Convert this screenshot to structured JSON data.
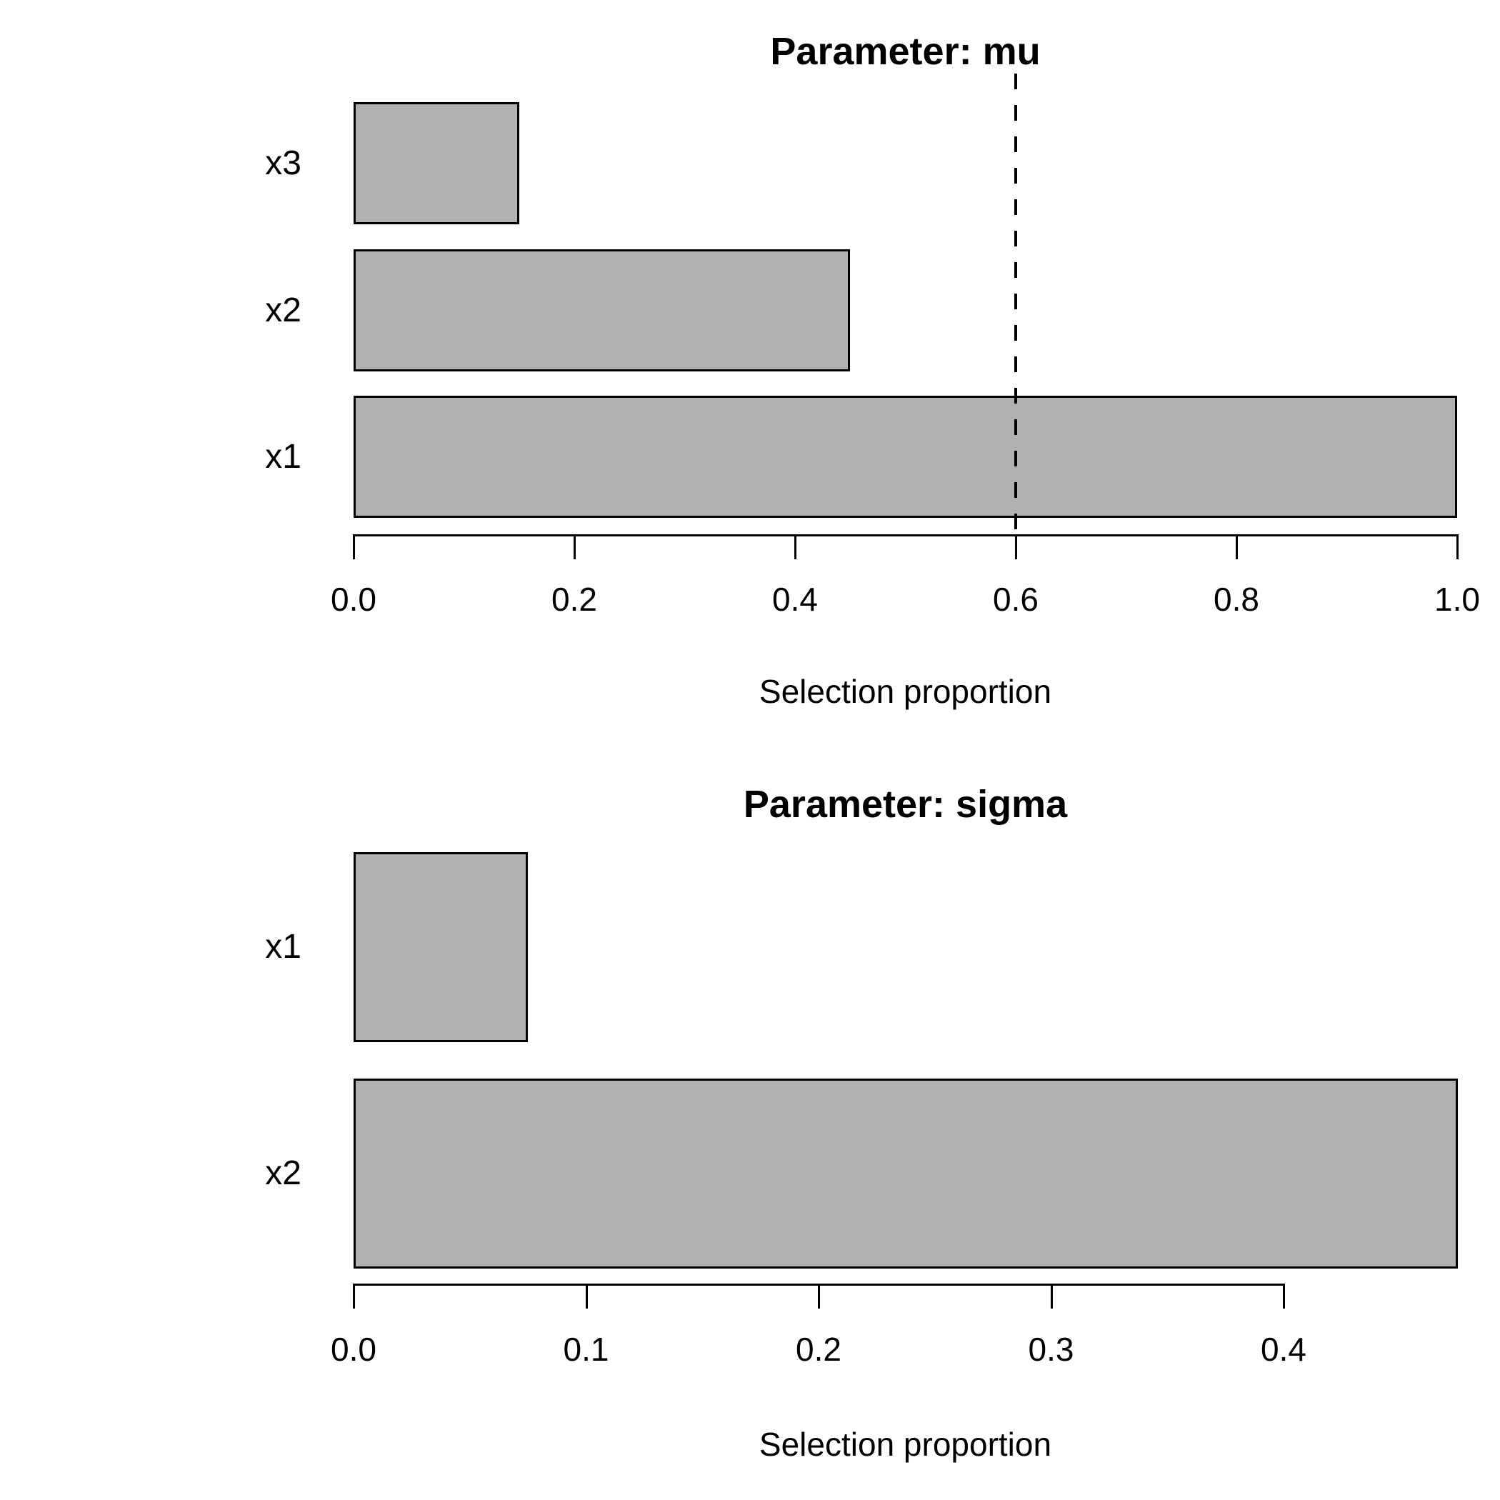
{
  "figure": {
    "background": "#ffffff",
    "bar_fill": "#b1b1b1",
    "bar_border": "#000000"
  },
  "chart_data": [
    {
      "type": "bar",
      "orientation": "horizontal",
      "title": "Parameter: mu",
      "xlabel": "Selection proportion",
      "ylabel": "",
      "categories": [
        "x3",
        "x2",
        "x1"
      ],
      "values": [
        0.15,
        0.45,
        1.0
      ],
      "xlim": [
        0.0,
        1.0
      ],
      "xticks": [
        0.0,
        0.2,
        0.4,
        0.6,
        0.8,
        1.0
      ],
      "xtick_labels": [
        "0.0",
        "0.2",
        "0.4",
        "0.6",
        "0.8",
        "1.0"
      ],
      "threshold_line": {
        "x": 0.6,
        "style": "dashed",
        "color": "#000000"
      },
      "grid": false,
      "legend": null,
      "bar_fill": "#b1b1b1",
      "bar_border": "#000000"
    },
    {
      "type": "bar",
      "orientation": "horizontal",
      "title": "Parameter: sigma",
      "xlabel": "Selection proportion",
      "ylabel": "",
      "categories": [
        "x1",
        "x2"
      ],
      "values": [
        0.075,
        0.475
      ],
      "xlim": [
        0.0,
        0.475
      ],
      "xticks": [
        0.0,
        0.1,
        0.2,
        0.3,
        0.4
      ],
      "xtick_labels": [
        "0.0",
        "0.1",
        "0.2",
        "0.3",
        "0.4"
      ],
      "threshold_line": null,
      "grid": false,
      "legend": null,
      "bar_fill": "#b1b1b1",
      "bar_border": "#000000"
    }
  ]
}
